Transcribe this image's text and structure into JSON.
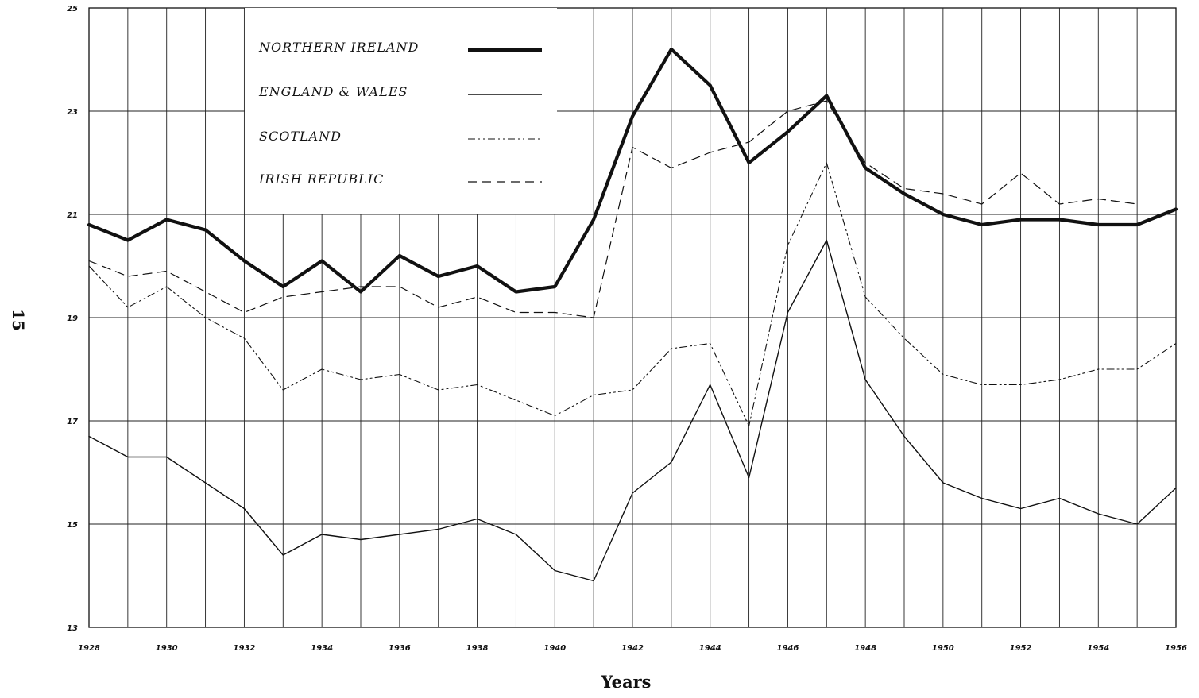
{
  "page_number": "15",
  "chart_data": {
    "type": "line",
    "title": "",
    "xlabel": "Years",
    "ylabel": "",
    "xlim": [
      1928,
      1956
    ],
    "ylim": [
      13,
      25
    ],
    "grid": true,
    "legend_position": "top-left",
    "x_ticks": [
      "1928",
      "1930",
      "1932",
      "1934",
      "1936",
      "1938",
      "1940",
      "1942",
      "1944",
      "1946",
      "1948",
      "1950",
      "1952",
      "1954",
      "1956"
    ],
    "y_ticks": [
      "13",
      "15",
      "17",
      "19",
      "21",
      "23",
      "25"
    ],
    "series": [
      {
        "name": "NORTHERN IRELAND",
        "style": "thick",
        "x": [
          1928,
          1929,
          1930,
          1931,
          1932,
          1933,
          1934,
          1935,
          1936,
          1937,
          1938,
          1939,
          1940,
          1941,
          1942,
          1943,
          1944,
          1945,
          1946,
          1947,
          1948,
          1949,
          1950,
          1951,
          1952,
          1953,
          1954,
          1955,
          1956
        ],
        "values": [
          20.8,
          20.5,
          20.9,
          20.7,
          20.1,
          19.6,
          20.1,
          19.5,
          20.2,
          19.8,
          20.0,
          19.5,
          19.6,
          20.9,
          22.9,
          24.2,
          23.5,
          22.0,
          22.6,
          23.3,
          21.9,
          21.4,
          21.0,
          20.8,
          20.9,
          20.9,
          20.8,
          20.8,
          21.1
        ]
      },
      {
        "name": "ENGLAND & WALES",
        "style": "solid",
        "x": [
          1928,
          1929,
          1930,
          1931,
          1932,
          1933,
          1934,
          1935,
          1936,
          1937,
          1938,
          1939,
          1940,
          1941,
          1942,
          1943,
          1944,
          1945,
          1946,
          1947,
          1948,
          1949,
          1950,
          1951,
          1952,
          1953,
          1954,
          1955,
          1956
        ],
        "values": [
          16.7,
          16.3,
          16.3,
          15.8,
          15.3,
          14.4,
          14.8,
          14.7,
          14.8,
          14.9,
          15.1,
          14.8,
          14.1,
          13.9,
          15.6,
          16.2,
          17.7,
          15.9,
          19.1,
          20.5,
          17.8,
          16.7,
          15.8,
          15.5,
          15.3,
          15.5,
          15.2,
          15.0,
          15.7
        ]
      },
      {
        "name": "SCOTLAND",
        "style": "dash-dot-dot",
        "x": [
          1928,
          1929,
          1930,
          1931,
          1932,
          1933,
          1934,
          1935,
          1936,
          1937,
          1938,
          1939,
          1940,
          1941,
          1942,
          1943,
          1944,
          1945,
          1946,
          1947,
          1948,
          1949,
          1950,
          1951,
          1952,
          1953,
          1954,
          1955,
          1956
        ],
        "values": [
          20.0,
          19.2,
          19.6,
          19.0,
          18.6,
          17.6,
          18.0,
          17.8,
          17.9,
          17.6,
          17.7,
          17.4,
          17.1,
          17.5,
          17.6,
          18.4,
          18.5,
          16.9,
          20.4,
          22.0,
          19.4,
          18.6,
          17.9,
          17.7,
          17.7,
          17.8,
          18.0,
          18.0,
          18.5
        ]
      },
      {
        "name": "IRISH REPUBLIC",
        "style": "dashed",
        "x": [
          1928,
          1929,
          1930,
          1931,
          1932,
          1933,
          1934,
          1935,
          1936,
          1937,
          1938,
          1939,
          1940,
          1941,
          1942,
          1943,
          1944,
          1945,
          1946,
          1947,
          1948,
          1949,
          1950,
          1951,
          1952,
          1953,
          1954,
          1955
        ],
        "values": [
          20.1,
          19.8,
          19.9,
          19.5,
          19.1,
          19.4,
          19.5,
          19.6,
          19.6,
          19.2,
          19.4,
          19.1,
          19.1,
          19.0,
          22.3,
          21.9,
          22.2,
          22.4,
          23.0,
          23.2,
          22.0,
          21.5,
          21.4,
          21.2,
          21.8,
          21.2,
          21.3,
          21.2
        ]
      }
    ]
  }
}
